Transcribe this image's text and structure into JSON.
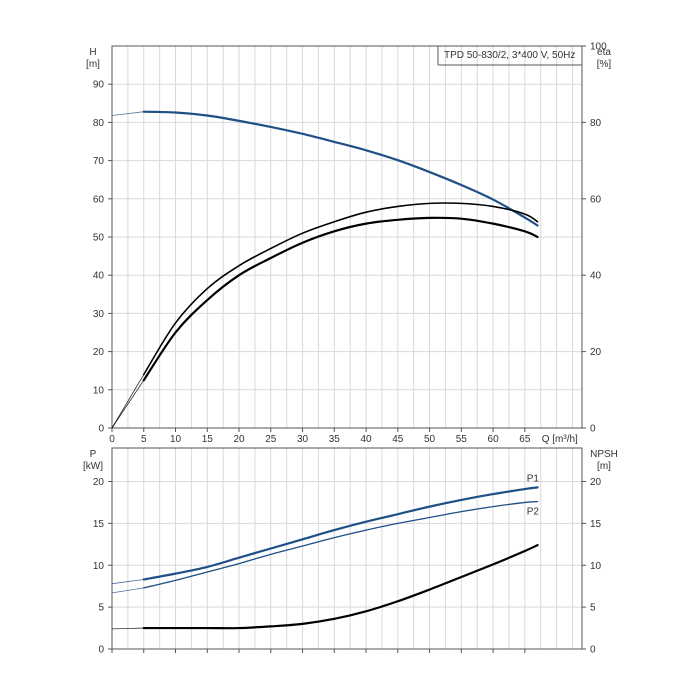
{
  "chart_data": [
    {
      "type": "line",
      "title": "TPD 50-830/2, 3*400 V, 50Hz",
      "y_label": "H",
      "y_unit": "[m]",
      "y2_label": "eta",
      "y2_unit": "[%]",
      "x_label": "Q [m³/h]",
      "xlim": [
        0,
        74
      ],
      "ylim": [
        0,
        100
      ],
      "y2lim": [
        0,
        100
      ],
      "grid": true,
      "x_ticks": [
        "0",
        "5",
        "10",
        "15",
        "20",
        "25",
        "30",
        "35",
        "40",
        "45",
        "50",
        "55",
        "60",
        "65"
      ],
      "y_ticks": [
        "0",
        "10",
        "20",
        "30",
        "40",
        "50",
        "60",
        "70",
        "80",
        "90"
      ],
      "y2_ticks": [
        "0",
        "20",
        "40",
        "60",
        "80",
        "100"
      ],
      "series": [
        {
          "name": "H",
          "color": "#1e4f85",
          "x": [
            0,
            5,
            10,
            15,
            20,
            25,
            30,
            35,
            40,
            45,
            50,
            55,
            60,
            65,
            67
          ],
          "y": [
            81.8,
            82.8,
            82.6,
            81.8,
            80.4,
            78.8,
            77.0,
            74.9,
            72.7,
            70.1,
            67.0,
            63.6,
            59.8,
            55.1,
            53.0
          ],
          "extrapolated_before": 5
        },
        {
          "name": "eta_upper",
          "color": "#000000",
          "x": [
            0,
            5,
            10,
            15,
            20,
            25,
            30,
            35,
            40,
            45,
            50,
            55,
            60,
            65,
            67
          ],
          "y": [
            0,
            14.0,
            27.5,
            36.5,
            42.5,
            47.0,
            51.0,
            54.0,
            56.5,
            58.0,
            58.8,
            58.8,
            58.0,
            56.0,
            54.0
          ],
          "axis": "y2",
          "extrapolated_before": 5
        },
        {
          "name": "eta_lower",
          "color": "#000000",
          "x": [
            0,
            5,
            10,
            15,
            20,
            25,
            30,
            35,
            40,
            45,
            50,
            55,
            60,
            65,
            67
          ],
          "y": [
            0,
            12.5,
            25.0,
            33.5,
            40.0,
            44.5,
            48.5,
            51.5,
            53.5,
            54.5,
            55.0,
            54.8,
            53.5,
            51.5,
            50.0
          ],
          "axis": "y2",
          "extrapolated_before": 5
        }
      ]
    },
    {
      "type": "line",
      "y_label": "P",
      "y_unit": "[kW]",
      "y2_label": "NPSH",
      "y2_unit": "[m]",
      "xlim": [
        0,
        74
      ],
      "ylim": [
        0,
        24
      ],
      "y2lim": [
        0,
        24
      ],
      "grid": true,
      "y_ticks": [
        "0",
        "5",
        "10",
        "15",
        "20"
      ],
      "y2_ticks": [
        "0",
        "5",
        "10",
        "15",
        "20"
      ],
      "series": [
        {
          "name": "P1",
          "color": "#1e4f85",
          "x": [
            0,
            5,
            10,
            15,
            20,
            25,
            30,
            35,
            40,
            45,
            50,
            55,
            60,
            65,
            67
          ],
          "y": [
            7.8,
            8.3,
            9.0,
            9.8,
            10.9,
            12.0,
            13.1,
            14.2,
            15.2,
            16.1,
            17.0,
            17.8,
            18.5,
            19.1,
            19.3
          ],
          "extrapolated_before": 5
        },
        {
          "name": "P2",
          "color": "#1e4f85",
          "x": [
            0,
            5,
            10,
            15,
            20,
            25,
            30,
            35,
            40,
            45,
            50,
            55,
            60,
            65,
            67
          ],
          "y": [
            6.7,
            7.3,
            8.2,
            9.2,
            10.2,
            11.3,
            12.3,
            13.3,
            14.2,
            15.0,
            15.7,
            16.4,
            17.0,
            17.5,
            17.6
          ],
          "extrapolated_before": 5
        },
        {
          "name": "NPSH",
          "color": "#000000",
          "x": [
            0,
            5,
            10,
            15,
            20,
            25,
            30,
            35,
            40,
            45,
            50,
            55,
            60,
            65,
            67
          ],
          "y": [
            2.4,
            2.5,
            2.5,
            2.5,
            2.5,
            2.7,
            3.0,
            3.6,
            4.5,
            5.7,
            7.1,
            8.6,
            10.1,
            11.7,
            12.4
          ],
          "axis": "y2",
          "extrapolated_before": 5
        }
      ]
    }
  ]
}
